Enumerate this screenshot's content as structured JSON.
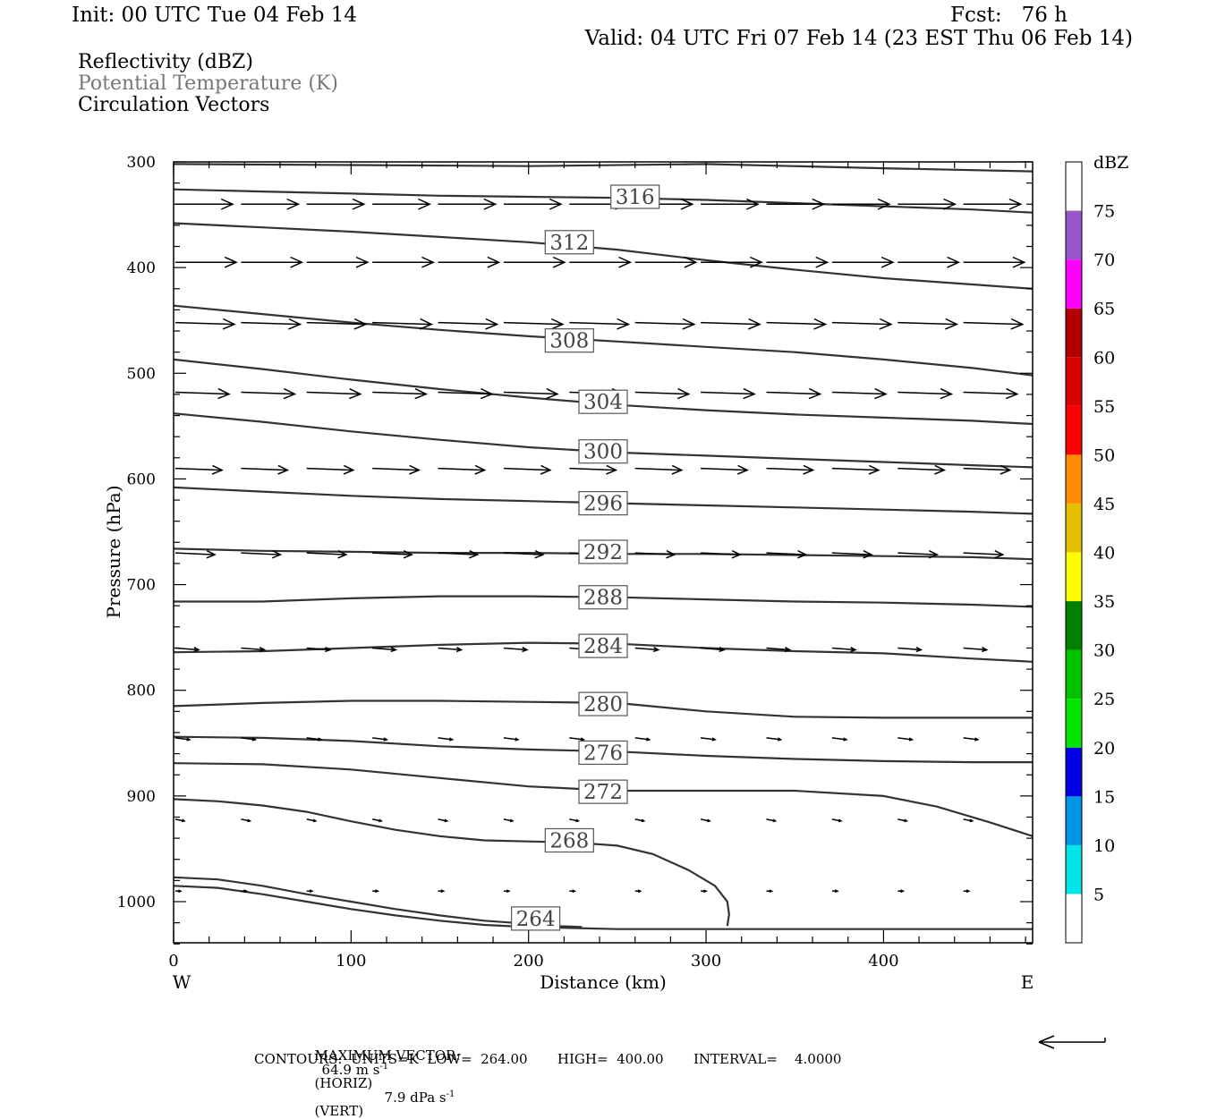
{
  "header": {
    "init": "Init: 00 UTC Tue 04 Feb 14",
    "fcst": "Fcst:   76 h",
    "valid": "Valid: 04 UTC Fri 07 Feb 14 (23 EST Thu 06 Feb 14)"
  },
  "fields": {
    "reflectivity": "Reflectivity (dBZ)",
    "theta": "Potential Temperature (K)",
    "vectors": "Circulation Vectors"
  },
  "colors": {
    "theta_text": "#777777",
    "contour": "#333333",
    "vector": "#000000"
  },
  "footer": {
    "max_vector_label": "MAXIMUM VECTOR:",
    "max_vector_horiz": "64.9 m s",
    "horiz_suffix": "(HORIZ)",
    "max_vector_vert": "7.9 dPa s",
    "vert_suffix": "(VERT)",
    "exponent": "-1",
    "contours": "CONTOURS:  UNITS=K  LOW=  264.00       HIGH=  400.00       INTERVAL=    4.0000"
  },
  "chart_data": {
    "type": "line",
    "xlabel": "Distance (km)",
    "ylabel": "Pressure (hPa)",
    "xlim": [
      0,
      484
    ],
    "ylim": [
      1040,
      300
    ],
    "x_ticks": [
      0,
      100,
      200,
      300,
      400
    ],
    "y_ticks": [
      300,
      400,
      500,
      600,
      700,
      800,
      900,
      1000
    ],
    "west_label": "W",
    "east_label": "E",
    "colorbar": {
      "unit": "dBZ",
      "levels": [
        5,
        10,
        15,
        20,
        25,
        30,
        35,
        40,
        45,
        50,
        55,
        60,
        65,
        70,
        75
      ],
      "colors": [
        "#ffffff",
        "#00e5e5",
        "#0096e6",
        "#0000e6",
        "#00e600",
        "#00c000",
        "#008200",
        "#ffff00",
        "#e6c000",
        "#ff8c00",
        "#ff0000",
        "#d80000",
        "#b00000",
        "#ff00ff",
        "#9955c8",
        "#ffffff"
      ]
    },
    "series": [
      {
        "name": "264",
        "x": [
          0,
          25,
          50,
          75,
          100,
          125,
          150,
          175,
          200,
          215,
          230
        ],
        "y": [
          977,
          979,
          985,
          993,
          1000,
          1007,
          1013,
          1018,
          1021,
          1023,
          1024
        ]
      },
      {
        "name": "264",
        "x": [
          0,
          25,
          50,
          75,
          100,
          125,
          150,
          175,
          200,
          225,
          250,
          300,
          350,
          400,
          450,
          484
        ],
        "y": [
          985,
          987,
          993,
          1000,
          1007,
          1013,
          1018,
          1022,
          1024,
          1025,
          1026,
          1026,
          1026,
          1026,
          1026,
          1026
        ]
      },
      {
        "name": "268",
        "x": [
          0,
          25,
          50,
          75,
          100,
          125,
          150,
          175,
          200,
          225,
          250,
          270,
          290,
          305,
          312,
          313,
          312
        ],
        "y": [
          903,
          905,
          909,
          915,
          924,
          932,
          938,
          942,
          943,
          944,
          947,
          955,
          970,
          985,
          1000,
          1012,
          1023
        ]
      },
      {
        "name": "272",
        "x": [
          0,
          50,
          100,
          150,
          200,
          250,
          300,
          350,
          400,
          430,
          460,
          484
        ],
        "y": [
          869,
          870,
          875,
          883,
          891,
          895,
          895,
          895,
          900,
          910,
          925,
          938
        ]
      },
      {
        "name": "276",
        "x": [
          0,
          50,
          100,
          150,
          200,
          250,
          300,
          350,
          400,
          450,
          484
        ],
        "y": [
          844,
          845,
          848,
          853,
          856,
          858,
          862,
          865,
          867,
          868,
          868
        ]
      },
      {
        "name": "280",
        "x": [
          0,
          50,
          100,
          150,
          200,
          250,
          300,
          350,
          400,
          450,
          484
        ],
        "y": [
          815,
          812,
          810,
          810,
          811,
          812,
          820,
          825,
          826,
          826,
          826
        ]
      },
      {
        "name": "284",
        "x": [
          0,
          50,
          100,
          150,
          200,
          250,
          300,
          350,
          400,
          450,
          484
        ],
        "y": [
          764,
          763,
          760,
          757,
          755,
          756,
          760,
          763,
          765,
          770,
          773
        ]
      },
      {
        "name": "288",
        "x": [
          0,
          50,
          100,
          150,
          200,
          250,
          300,
          350,
          400,
          450,
          484
        ],
        "y": [
          716,
          716,
          713,
          711,
          711,
          712,
          714,
          716,
          717,
          719,
          721
        ]
      },
      {
        "name": "292",
        "x": [
          0,
          50,
          100,
          150,
          200,
          250,
          300,
          350,
          400,
          450,
          484
        ],
        "y": [
          666,
          668,
          669,
          670,
          670,
          671,
          671,
          672,
          673,
          674,
          676
        ]
      },
      {
        "name": "296",
        "x": [
          0,
          50,
          100,
          150,
          200,
          250,
          300,
          350,
          400,
          450,
          484
        ],
        "y": [
          608,
          612,
          616,
          619,
          621,
          623,
          625,
          627,
          629,
          631,
          633
        ]
      },
      {
        "name": "300",
        "x": [
          0,
          50,
          100,
          150,
          200,
          250,
          300,
          350,
          400,
          450,
          484
        ],
        "y": [
          538,
          546,
          555,
          563,
          570,
          575,
          578,
          581,
          584,
          587,
          589
        ]
      },
      {
        "name": "304",
        "x": [
          0,
          50,
          100,
          150,
          200,
          250,
          300,
          350,
          400,
          450,
          484
        ],
        "y": [
          487,
          496,
          506,
          515,
          523,
          530,
          535,
          539,
          542,
          545,
          548
        ]
      },
      {
        "name": "308",
        "x": [
          0,
          50,
          100,
          150,
          200,
          250,
          300,
          350,
          400,
          450,
          484
        ],
        "y": [
          436,
          444,
          452,
          459,
          465,
          470,
          475,
          480,
          487,
          495,
          502
        ]
      },
      {
        "name": "312",
        "x": [
          0,
          50,
          100,
          150,
          200,
          250,
          300,
          350,
          400,
          450,
          484
        ],
        "y": [
          358,
          362,
          366,
          371,
          376,
          383,
          393,
          402,
          410,
          416,
          420
        ]
      },
      {
        "name": "316",
        "x": [
          0,
          50,
          100,
          150,
          200,
          250,
          300,
          350,
          400,
          450,
          484
        ],
        "y": [
          326,
          328,
          330,
          332,
          333,
          334,
          336,
          339,
          342,
          345,
          348
        ]
      },
      {
        "name": "",
        "x": [
          0,
          100,
          200,
          300,
          400,
          484
        ],
        "y": [
          302,
          303,
          304,
          302,
          306,
          309
        ]
      }
    ],
    "contour_labels": [
      {
        "text": "316",
        "x": 260,
        "y": 333
      },
      {
        "text": "312",
        "x": 223,
        "y": 376
      },
      {
        "text": "308",
        "x": 223,
        "y": 469
      },
      {
        "text": "304",
        "x": 242,
        "y": 527
      },
      {
        "text": "300",
        "x": 242,
        "y": 574
      },
      {
        "text": "296",
        "x": 242,
        "y": 623
      },
      {
        "text": "292",
        "x": 242,
        "y": 669
      },
      {
        "text": "288",
        "x": 242,
        "y": 712
      },
      {
        "text": "284",
        "x": 242,
        "y": 758
      },
      {
        "text": "280",
        "x": 242,
        "y": 813
      },
      {
        "text": "276",
        "x": 242,
        "y": 859
      },
      {
        "text": "272",
        "x": 242,
        "y": 896
      },
      {
        "text": "268",
        "x": 223,
        "y": 942
      },
      {
        "text": "264",
        "x": 204,
        "y": 1016
      }
    ],
    "vector_rows": [
      {
        "y": 340,
        "dx": 32,
        "dy": 0
      },
      {
        "y": 395,
        "dx": 34,
        "dy": 0
      },
      {
        "y": 452,
        "dx": 33,
        "dy": 1
      },
      {
        "y": 518,
        "dx": 30,
        "dy": 1
      },
      {
        "y": 590,
        "dx": 26,
        "dy": 1
      },
      {
        "y": 670,
        "dx": 22,
        "dy": 1
      },
      {
        "y": 760,
        "dx": 13,
        "dy": 1
      },
      {
        "y": 845,
        "dx": 8,
        "dy": 1
      },
      {
        "y": 922,
        "dx": 5,
        "dy": 1
      },
      {
        "y": 990,
        "dx": 3,
        "dy": 0
      }
    ],
    "vector_x": [
      0,
      37,
      74,
      111,
      148,
      185,
      222,
      259,
      296,
      333,
      370,
      407,
      444
    ],
    "max_vector": {
      "horiz_ms": 64.9,
      "vert_dPas": 7.9
    }
  }
}
